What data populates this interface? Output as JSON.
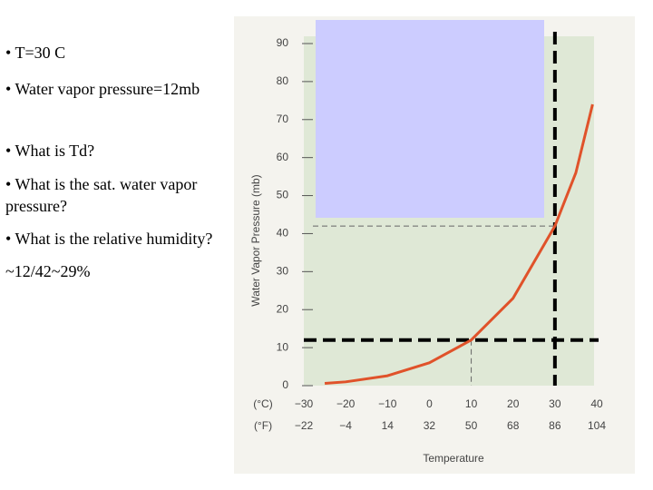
{
  "bullets": [
    "• T=30 C",
    "• Water vapor pressure=12mb",
    "• What is Td?",
    "• What is the sat. water vapor pressure?",
    "• What is the relative humidity?",
    "~12/42~29%"
  ],
  "chart_data": {
    "type": "line",
    "y_label": "Water Vapor Pressure (mb)",
    "x_label": "Temperature",
    "x_unit_label": "(°C)",
    "x2_unit_label": "(°F)",
    "x": [
      -25,
      -20,
      -10,
      0,
      10,
      20,
      30,
      35,
      39
    ],
    "series": [
      {
        "color": "#e0522a",
        "values": [
          0.6,
          1,
          2.6,
          6,
          12,
          23,
          42,
          56,
          74
        ]
      }
    ],
    "xlim": [
      -30,
      40
    ],
    "ylim": [
      0,
      90
    ],
    "xticks": [
      {
        "value": -30,
        "label": "−30"
      },
      {
        "value": -20,
        "label": "−20"
      },
      {
        "value": -10,
        "label": "−10"
      },
      0,
      10,
      20,
      30,
      40
    ],
    "x2ticks": [
      {
        "value": -30,
        "label": "−22"
      },
      {
        "value": -20,
        "label": "−4"
      },
      {
        "value": -10,
        "label": "14"
      },
      {
        "value": 0,
        "label": "32"
      },
      {
        "value": 10,
        "label": "50"
      },
      {
        "value": 20,
        "label": "68"
      },
      {
        "value": 30,
        "label": "86"
      },
      {
        "value": 40,
        "label": "104"
      }
    ],
    "yticks": [
      0,
      10,
      20,
      30,
      40,
      50,
      60,
      70,
      80,
      90
    ],
    "guides": [
      {
        "axis": "y",
        "value": 12,
        "style": "thick"
      },
      {
        "axis": "x",
        "value": 30,
        "style": "thick"
      },
      {
        "axis": "y",
        "value": 42,
        "style": "thin"
      },
      {
        "axis": "x",
        "value": 10,
        "style": "thin"
      }
    ]
  }
}
